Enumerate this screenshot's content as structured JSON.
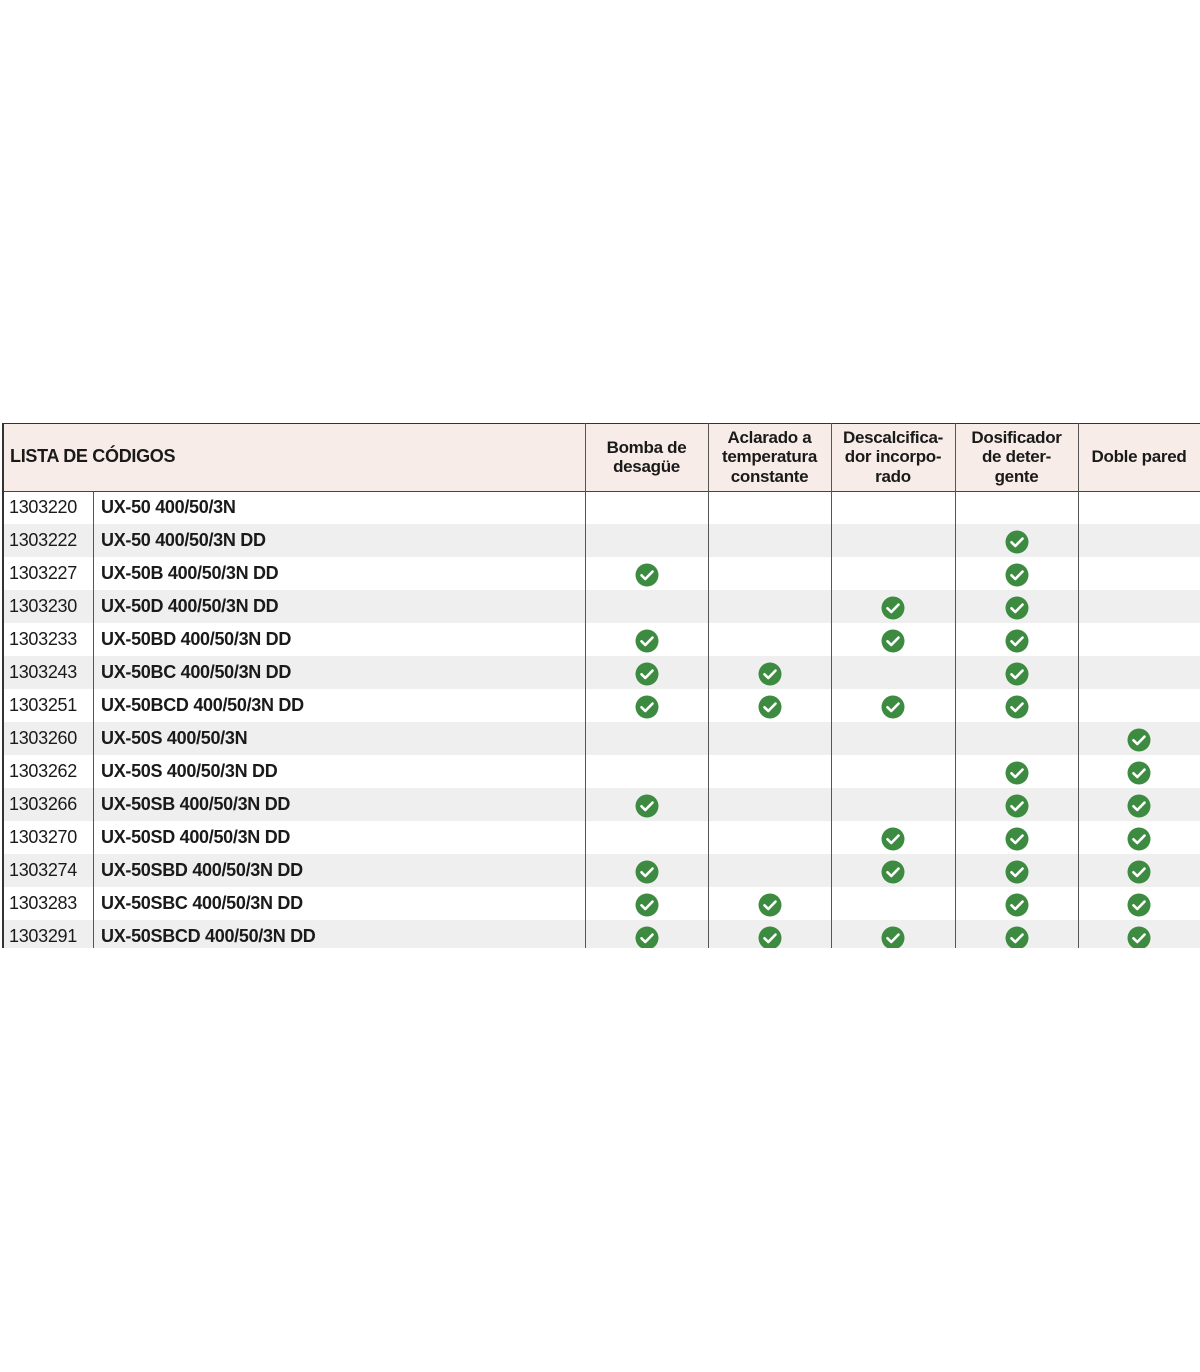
{
  "table": {
    "header": {
      "title": "LISTA DE CÓDIGOS",
      "columns": [
        [
          "Bomba de",
          "desagüe"
        ],
        [
          "Aclarado a",
          "temperatura",
          "constante"
        ],
        [
          "Descalcifica-",
          "dor incorpo-",
          "rado"
        ],
        [
          "Dosificador",
          "de deter-",
          "gente"
        ],
        [
          "Doble pared"
        ]
      ]
    },
    "rows": [
      {
        "code": "1303220",
        "model": "UX-50 400/50/3N",
        "features": [
          false,
          false,
          false,
          false,
          false
        ]
      },
      {
        "code": "1303222",
        "model": "UX-50 400/50/3N DD",
        "features": [
          false,
          false,
          false,
          true,
          false
        ]
      },
      {
        "code": "1303227",
        "model": "UX-50B 400/50/3N DD",
        "features": [
          true,
          false,
          false,
          true,
          false
        ]
      },
      {
        "code": "1303230",
        "model": "UX-50D 400/50/3N DD",
        "features": [
          false,
          false,
          true,
          true,
          false
        ]
      },
      {
        "code": "1303233",
        "model": "UX-50BD 400/50/3N DD",
        "features": [
          true,
          false,
          true,
          true,
          false
        ]
      },
      {
        "code": "1303243",
        "model": "UX-50BC 400/50/3N DD",
        "features": [
          true,
          true,
          false,
          true,
          false
        ]
      },
      {
        "code": "1303251",
        "model": "UX-50BCD 400/50/3N DD",
        "features": [
          true,
          true,
          true,
          true,
          false
        ]
      },
      {
        "code": "1303260",
        "model": "UX-50S 400/50/3N",
        "features": [
          false,
          false,
          false,
          false,
          true
        ]
      },
      {
        "code": "1303262",
        "model": "UX-50S 400/50/3N DD",
        "features": [
          false,
          false,
          false,
          true,
          true
        ]
      },
      {
        "code": "1303266",
        "model": "UX-50SB 400/50/3N DD",
        "features": [
          true,
          false,
          false,
          true,
          true
        ]
      },
      {
        "code": "1303270",
        "model": "UX-50SD 400/50/3N DD",
        "features": [
          false,
          false,
          true,
          true,
          true
        ]
      },
      {
        "code": "1303274",
        "model": "UX-50SBD 400/50/3N DD",
        "features": [
          true,
          false,
          true,
          true,
          true
        ]
      },
      {
        "code": "1303283",
        "model": "UX-50SBC 400/50/3N DD",
        "features": [
          true,
          true,
          false,
          true,
          true
        ]
      },
      {
        "code": "1303291",
        "model": "UX-50SBCD 400/50/3N DD",
        "features": [
          true,
          true,
          true,
          true,
          true
        ]
      }
    ]
  }
}
